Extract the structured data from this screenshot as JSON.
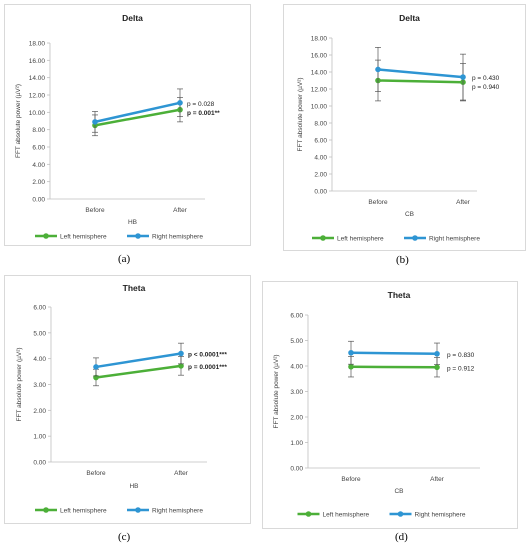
{
  "chart_data": [
    {
      "type": "line",
      "panel_label": "(a)",
      "title": "Delta",
      "xlabel": "HB",
      "ylabel": "FFT absolute power (µV²)",
      "categories": [
        "Before",
        "After"
      ],
      "ylim": [
        0,
        18
      ],
      "yticks": [
        "0.00",
        "2.00",
        "4.00",
        "6.00",
        "8.00",
        "10.00",
        "12.00",
        "14.00",
        "16.00",
        "18.00"
      ],
      "series": [
        {
          "name": "Left hemisphere",
          "color": "#4caf38",
          "values": [
            8.5,
            10.3
          ],
          "error": [
            1.2,
            1.4
          ]
        },
        {
          "name": "Right hemisphere",
          "color": "#2e95d3",
          "values": [
            8.9,
            11.1
          ],
          "error": [
            1.2,
            1.6
          ]
        }
      ],
      "annotations": [
        {
          "text": "p = 0.028",
          "bold": false,
          "series": 1
        },
        {
          "text": "p = 0.001**",
          "bold": true,
          "series": 0
        }
      ]
    },
    {
      "type": "line",
      "panel_label": "(b)",
      "title": "Delta",
      "xlabel": "CB",
      "ylabel": "FFT absolute power (µV²)",
      "categories": [
        "Before",
        "After"
      ],
      "ylim": [
        0,
        18
      ],
      "yticks": [
        "0.00",
        "2.00",
        "4.00",
        "6.00",
        "8.00",
        "10.00",
        "12.00",
        "14.00",
        "16.00",
        "18.00"
      ],
      "series": [
        {
          "name": "Left hemisphere",
          "color": "#4caf38",
          "values": [
            13.0,
            12.8
          ],
          "error": [
            2.4,
            2.2
          ]
        },
        {
          "name": "Right hemisphere",
          "color": "#2e95d3",
          "values": [
            14.3,
            13.4
          ],
          "error": [
            2.6,
            2.7
          ]
        }
      ],
      "annotations": [
        {
          "text": "p = 0.430",
          "bold": false,
          "series": 1
        },
        {
          "text": "p = 0.940",
          "bold": false,
          "series": 0
        }
      ]
    },
    {
      "type": "line",
      "panel_label": "(c)",
      "title": "Theta",
      "xlabel": "HB",
      "ylabel": "FFT absolute power (µV²)",
      "categories": [
        "Before",
        "After"
      ],
      "ylim": [
        0,
        6
      ],
      "yticks": [
        "0.00",
        "1.00",
        "2.00",
        "3.00",
        "4.00",
        "5.00",
        "6.00"
      ],
      "series": [
        {
          "name": "Left hemisphere",
          "color": "#4caf38",
          "values": [
            3.27,
            3.72
          ],
          "error": [
            0.32,
            0.36
          ]
        },
        {
          "name": "Right hemisphere",
          "color": "#2e95d3",
          "values": [
            3.68,
            4.2
          ],
          "error": [
            0.35,
            0.4
          ]
        }
      ],
      "annotations": [
        {
          "text": "p < 0.0001***",
          "bold": true,
          "series": 1
        },
        {
          "text": "p = 0.0001***",
          "bold": true,
          "series": 0
        }
      ]
    },
    {
      "type": "line",
      "panel_label": "(d)",
      "title": "Theta",
      "xlabel": "CB",
      "ylabel": "FFT absolute power (µV²)",
      "categories": [
        "Before",
        "After"
      ],
      "ylim": [
        0,
        6
      ],
      "yticks": [
        "0.00",
        "1.00",
        "2.00",
        "3.00",
        "4.00",
        "5.00",
        "6.00"
      ],
      "series": [
        {
          "name": "Left hemisphere",
          "color": "#4caf38",
          "values": [
            3.97,
            3.95
          ],
          "error": [
            0.4,
            0.38
          ]
        },
        {
          "name": "Right hemisphere",
          "color": "#2e95d3",
          "values": [
            4.52,
            4.48
          ],
          "error": [
            0.45,
            0.42
          ]
        }
      ],
      "annotations": [
        {
          "text": "p = 0.830",
          "bold": false,
          "series": 1
        },
        {
          "text": "p = 0.912",
          "bold": false,
          "series": 0
        }
      ]
    }
  ]
}
